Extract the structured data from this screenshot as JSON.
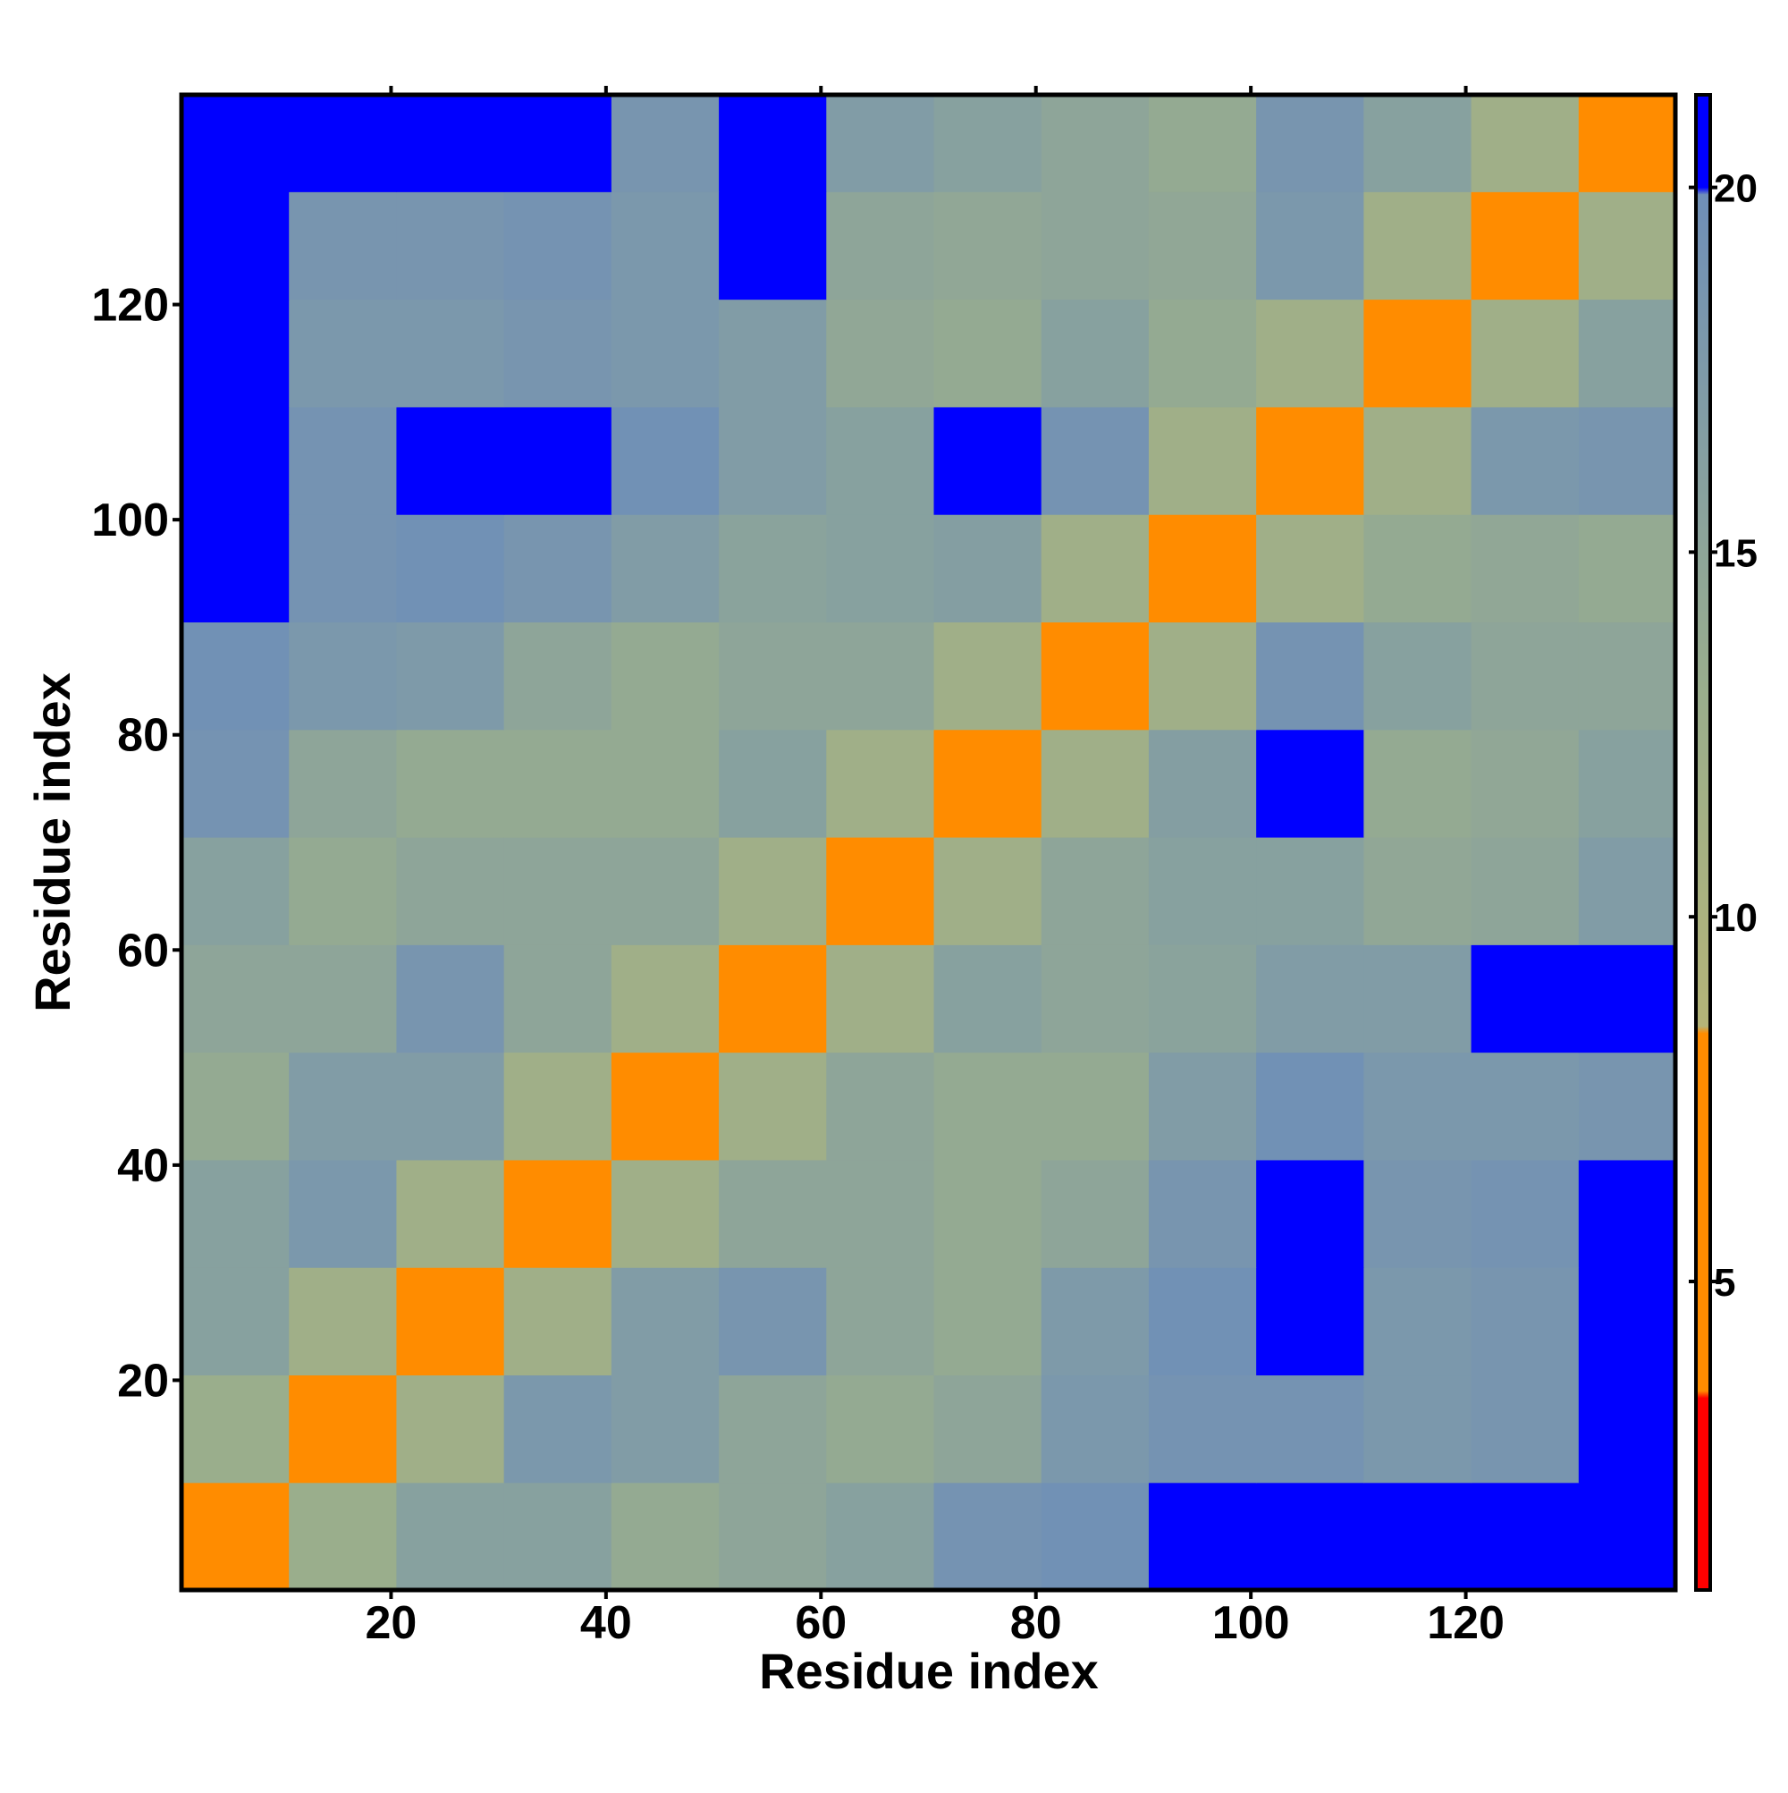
{
  "chart_data": {
    "type": "heatmap",
    "x_label": "Residue index",
    "y_label": "Residue index",
    "xbins": [
      0.5,
      10.5,
      20.5,
      30.5,
      40.5,
      50.5,
      60.5,
      70.5,
      80.5,
      90.5,
      100.5,
      110.5,
      120.5,
      130.5,
      139.5
    ],
    "ybins": [
      0.5,
      10.5,
      20.5,
      30.5,
      40.5,
      50.5,
      60.5,
      70.5,
      80.5,
      90.5,
      100.5,
      110.5,
      120.5,
      130.5,
      139.5
    ],
    "xlim": [
      0.5,
      139.5
    ],
    "ylim": [
      0.5,
      139.5
    ],
    "xticks": [
      20,
      40,
      60,
      80,
      100,
      120
    ],
    "yticks": [
      20,
      40,
      60,
      80,
      100,
      120
    ],
    "zlim": [
      0.77,
      21.27
    ],
    "zticks": [
      5,
      10,
      15,
      20
    ],
    "colorscale": [
      [
        0.77,
        "#ff0000"
      ],
      [
        3.4,
        "#ff0000"
      ],
      [
        3.5,
        "#ff8c00"
      ],
      [
        8.4,
        "#ff8c00"
      ],
      [
        8.5,
        "#b4b478"
      ],
      [
        13,
        "#9aae8c"
      ],
      [
        19.9,
        "#6f8fb8"
      ],
      [
        20,
        "#0000ff"
      ],
      [
        21.27,
        "#0000ff"
      ]
    ],
    "z": [
      [
        6,
        13,
        16,
        16,
        14,
        15,
        16,
        19,
        19.5,
        21,
        21,
        21,
        21,
        21
      ],
      [
        13,
        6,
        12,
        18,
        17,
        15,
        14,
        15,
        18,
        19,
        19,
        18,
        18.5,
        21
      ],
      [
        16,
        12,
        6,
        12,
        17,
        18.5,
        15,
        14,
        17.5,
        19.5,
        20,
        18,
        18.5,
        21
      ],
      [
        16,
        18,
        12,
        6,
        12,
        15,
        15,
        14,
        15,
        18.5,
        20.5,
        18.5,
        19,
        21
      ],
      [
        14,
        17,
        17,
        12,
        6,
        12,
        15,
        14,
        14,
        17,
        19.5,
        18,
        18,
        18.5
      ],
      [
        15,
        15,
        18.5,
        15,
        12,
        6,
        12,
        16,
        15,
        15.5,
        17,
        17,
        20,
        20.5
      ],
      [
        16,
        14,
        15,
        15,
        15,
        12,
        6,
        12,
        15,
        16,
        16,
        14.5,
        15,
        17
      ],
      [
        19,
        15,
        14,
        14,
        14,
        16,
        12,
        6,
        12,
        16.5,
        20,
        14,
        14.5,
        16
      ],
      [
        19.5,
        18,
        17.5,
        15,
        14,
        15,
        15,
        12,
        6,
        12,
        19,
        16,
        15,
        15
      ],
      [
        21,
        19,
        19.5,
        18.5,
        17,
        15.5,
        16,
        16.5,
        12,
        6,
        12,
        14,
        14.5,
        14
      ],
      [
        21,
        19,
        20,
        20.5,
        19.5,
        17,
        16,
        20,
        19,
        12,
        6,
        12,
        18,
        18.5
      ],
      [
        21,
        18,
        18,
        18.5,
        18,
        17,
        14.5,
        14,
        16,
        14,
        12,
        6,
        12,
        16
      ],
      [
        21,
        18.5,
        18.5,
        19,
        18,
        20,
        15,
        14.5,
        15,
        14.5,
        18,
        12,
        6,
        12
      ],
      [
        21,
        21,
        21,
        21,
        18.5,
        20.5,
        17,
        16,
        15,
        14,
        18.5,
        16,
        12,
        6
      ]
    ]
  }
}
